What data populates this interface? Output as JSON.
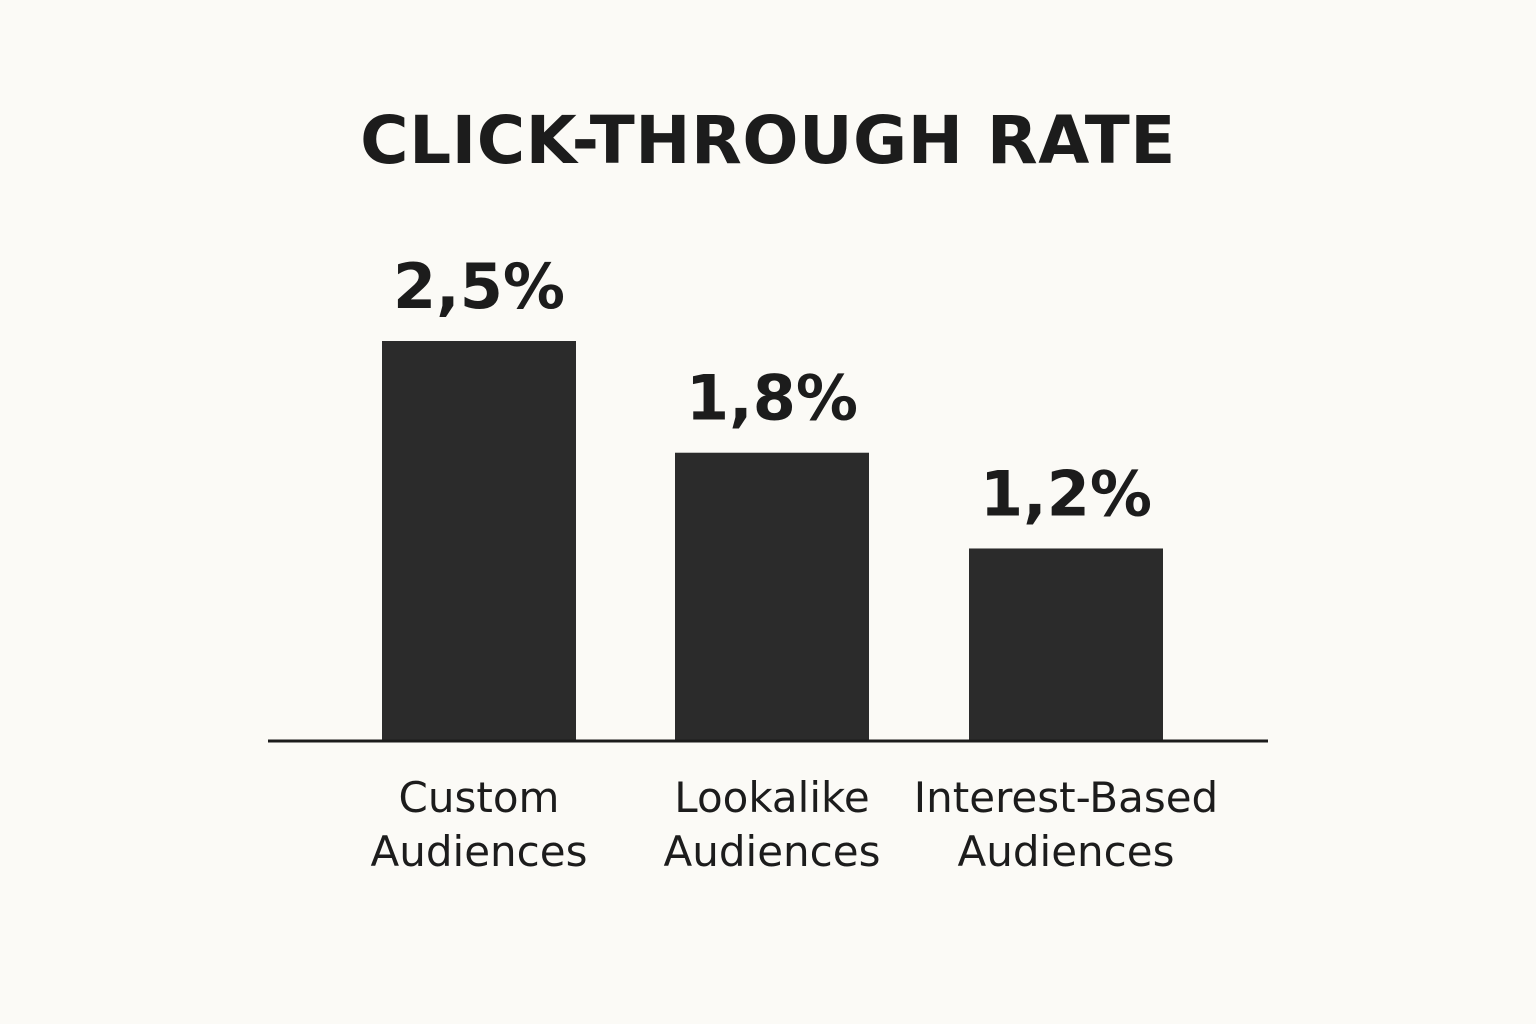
{
  "chart_data": {
    "type": "bar",
    "title": "CLICK-THROUGH RATE",
    "xlabel": "",
    "ylabel": "",
    "categories": [
      [
        "Custom",
        "Audiences"
      ],
      [
        "Lookalike",
        "Audiences"
      ],
      [
        "Interest-Based",
        "Audiences"
      ]
    ],
    "values": [
      2.5,
      1.8,
      1.2
    ],
    "value_labels": [
      "2,5%",
      "1,8%",
      "1,2%"
    ],
    "unit": "%",
    "ylim": [
      0,
      2.5
    ],
    "grid": false,
    "legend": "none",
    "colors": {
      "bar": "#2b2b2b",
      "background": "#fbfaf6",
      "text": "#1c1c1c"
    }
  }
}
